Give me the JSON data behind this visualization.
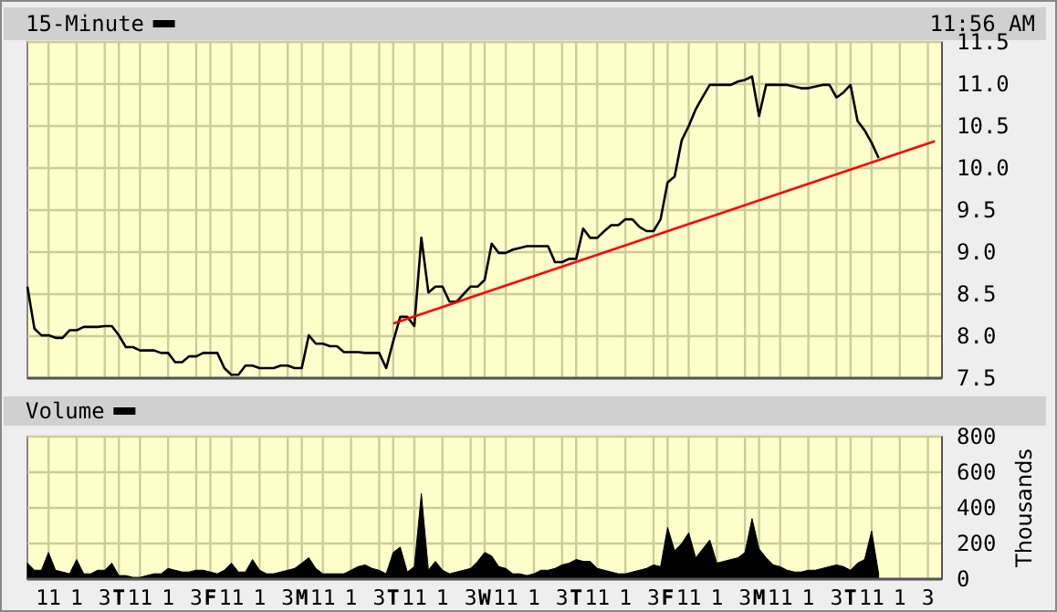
{
  "chart_data": [
    {
      "type": "line",
      "annotations": [
        "11:56 AM"
      ],
      "legend": "top left",
      "grid": true,
      "tick_labels": "y",
      "ylim": [
        7.5,
        11.5
      ],
      "yticks": [
        7.5,
        {
          "value": 8,
          "label": "8.0"
        },
        8.5,
        {
          "value": 9,
          "label": "9.0"
        },
        9.5,
        {
          "value": 10,
          "label": "10.0"
        },
        10.5,
        {
          "value": 11,
          "label": "11.0"
        },
        11.5
      ],
      "categories": [
        null,
        null,
        null,
        null,
        null,
        null,
        null,
        null,
        null,
        null,
        null,
        null,
        null,
        null,
        null,
        null,
        null,
        null,
        null,
        null,
        null,
        null,
        null,
        null,
        null,
        null,
        null,
        null,
        null,
        null,
        null,
        null,
        null,
        null,
        null,
        null,
        null,
        null,
        null,
        null,
        null,
        null,
        null,
        null,
        null,
        null,
        null,
        null,
        null,
        null,
        null,
        null,
        null,
        null,
        null,
        null,
        null,
        null,
        null,
        null,
        null,
        null,
        null,
        null,
        null,
        null,
        null,
        null,
        null,
        null,
        null,
        null,
        null,
        null,
        null,
        null,
        null,
        null,
        null,
        null,
        null,
        null,
        null,
        null,
        null,
        null,
        null,
        null,
        null,
        null,
        null,
        null,
        null,
        null,
        null,
        null,
        null,
        null,
        null,
        null,
        null,
        null,
        null,
        null,
        null,
        null,
        null,
        null,
        null,
        null,
        null,
        null,
        null,
        null,
        null,
        null,
        null,
        null,
        null,
        null,
        null,
        null,
        null,
        null,
        null,
        null,
        null,
        null,
        null,
        null
      ],
      "series": [
        {
          "name": "15-Minute",
          "color": "#000000",
          "values": [
            8.59,
            8.09,
            8.01,
            8.01,
            7.98,
            7.98,
            8.07,
            8.07,
            8.11,
            8.11,
            8.11,
            8.12,
            8.12,
            8.01,
            7.87,
            7.87,
            7.83,
            7.83,
            7.83,
            7.8,
            7.8,
            7.69,
            7.69,
            7.76,
            7.76,
            7.8,
            7.8,
            7.8,
            7.62,
            7.54,
            7.54,
            7.65,
            7.65,
            7.62,
            7.62,
            7.62,
            7.65,
            7.65,
            7.62,
            7.62,
            8.01,
            7.91,
            7.91,
            7.88,
            7.88,
            7.81,
            7.81,
            7.81,
            7.8,
            7.8,
            7.8,
            7.62,
            7.94,
            8.23,
            8.23,
            8.12,
            9.17,
            8.52,
            8.59,
            8.59,
            8.41,
            8.41,
            8.5,
            8.59,
            8.59,
            8.67,
            9.1,
            8.99,
            8.99,
            9.03,
            9.05,
            9.07,
            9.07,
            9.07,
            9.07,
            8.88,
            8.88,
            8.92,
            8.92,
            9.28,
            9.17,
            9.17,
            9.25,
            9.32,
            9.32,
            9.39,
            9.39,
            9.3,
            9.25,
            9.25,
            9.39,
            9.83,
            9.9,
            10.33,
            10.5,
            10.7,
            10.85,
            10.99,
            10.99,
            10.99,
            10.99,
            11.03,
            11.05,
            11.09,
            10.62,
            10.99,
            10.99,
            10.99,
            10.99,
            10.97,
            10.95,
            10.95,
            10.97,
            10.99,
            10.99,
            10.84,
            10.9,
            10.99,
            10.56,
            10.45,
            10.3,
            10.12,
            null,
            null,
            null,
            null,
            null,
            null,
            null,
            null
          ]
        },
        {
          "type": "line",
          "color": "#ff0000",
          "values": [
            null,
            null,
            null,
            null,
            null,
            null,
            null,
            null,
            null,
            null,
            null,
            null,
            null,
            null,
            null,
            null,
            null,
            null,
            null,
            null,
            null,
            null,
            null,
            null,
            null,
            null,
            null,
            null,
            null,
            null,
            null,
            null,
            null,
            null,
            null,
            null,
            null,
            null,
            null,
            null,
            null,
            null,
            null,
            null,
            null,
            null,
            null,
            null,
            null,
            null,
            null,
            null,
            8.15,
            null,
            null,
            null,
            null,
            null,
            null,
            null,
            null,
            null,
            null,
            null,
            null,
            null,
            null,
            null,
            null,
            null,
            null,
            null,
            null,
            null,
            null,
            null,
            null,
            null,
            null,
            null,
            null,
            null,
            null,
            null,
            null,
            null,
            null,
            null,
            null,
            null,
            null,
            null,
            null,
            null,
            null,
            null,
            null,
            null,
            null,
            null,
            null,
            null,
            null,
            null,
            null,
            null,
            null,
            null,
            null,
            null,
            null,
            null,
            null,
            null,
            null,
            null,
            null,
            null,
            null,
            null,
            null,
            null,
            null,
            null,
            null,
            null,
            null,
            null,
            null,
            10.32
          ]
        }
      ]
    },
    {
      "type": "area",
      "ylabel": "Thousands",
      "legend": "top left",
      "grid": true,
      "ylim": [
        0,
        800
      ],
      "yticks": [
        0,
        200,
        400,
        600,
        800
      ],
      "categories": [
        null,
        null,
        null,
        "11",
        null,
        null,
        null,
        "1",
        null,
        null,
        null,
        "3",
        null,
        "T",
        null,
        null,
        "11",
        null,
        null,
        null,
        "1",
        null,
        null,
        null,
        "3",
        null,
        "F",
        null,
        null,
        "11",
        null,
        null,
        null,
        "1",
        null,
        null,
        null,
        "3",
        null,
        "M",
        null,
        null,
        "11",
        null,
        null,
        null,
        "1",
        null,
        null,
        null,
        "3",
        null,
        "T",
        null,
        null,
        "11",
        null,
        null,
        null,
        "1",
        null,
        null,
        null,
        "3",
        null,
        "W",
        null,
        null,
        "11",
        null,
        null,
        null,
        "1",
        null,
        null,
        null,
        "3",
        null,
        "T",
        null,
        null,
        "11",
        null,
        null,
        null,
        "1",
        null,
        null,
        null,
        "3",
        null,
        "F",
        null,
        null,
        "11",
        null,
        null,
        null,
        "1",
        null,
        null,
        null,
        "3",
        null,
        "M",
        null,
        null,
        "11",
        null,
        null,
        null,
        "1",
        null,
        null,
        null,
        "3",
        null,
        "T",
        null,
        null,
        "11",
        null,
        null,
        null,
        "1",
        null,
        null,
        null,
        "3",
        null
      ],
      "series": [
        {
          "name": "Volume",
          "color": "#000000",
          "values": [
            90,
            50,
            50,
            150,
            50,
            40,
            30,
            110,
            30,
            30,
            50,
            50,
            90,
            20,
            20,
            10,
            10,
            20,
            30,
            30,
            60,
            50,
            40,
            40,
            50,
            50,
            40,
            30,
            50,
            90,
            40,
            40,
            110,
            50,
            30,
            30,
            40,
            50,
            60,
            90,
            120,
            60,
            30,
            30,
            30,
            30,
            50,
            70,
            80,
            60,
            50,
            30,
            150,
            180,
            40,
            70,
            480,
            50,
            100,
            50,
            30,
            40,
            50,
            60,
            100,
            150,
            130,
            70,
            60,
            30,
            30,
            20,
            30,
            50,
            50,
            60,
            80,
            90,
            110,
            100,
            100,
            60,
            50,
            40,
            30,
            30,
            40,
            50,
            60,
            80,
            70,
            290,
            160,
            200,
            260,
            120,
            170,
            220,
            90,
            100,
            110,
            120,
            150,
            340,
            170,
            120,
            80,
            70,
            50,
            40,
            40,
            50,
            50,
            60,
            70,
            80,
            70,
            50,
            90,
            110,
            270,
            30,
            null,
            null,
            null,
            null,
            null,
            null,
            null,
            null
          ]
        }
      ]
    }
  ]
}
